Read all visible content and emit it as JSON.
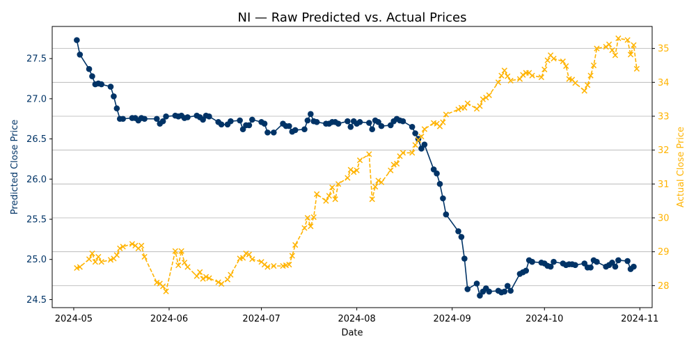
{
  "chart_data": {
    "type": "line",
    "title": "NI — Raw Predicted vs. Actual Prices",
    "xlabel": "Date",
    "ylabel_left": "Predicted Close Price",
    "ylabel_right": "Actual Close Price",
    "xlim": [
      "2024-04-24",
      "2024-11-05"
    ],
    "ylim_left": [
      24.4,
      27.9
    ],
    "ylim_right": [
      27.35,
      35.65
    ],
    "x_ticks": [
      "2024-05-01",
      "2024-06-01",
      "2024-07-01",
      "2024-08-01",
      "2024-09-01",
      "2024-10-01",
      "2024-11-01"
    ],
    "x_tick_labels": [
      "2024-05",
      "2024-06",
      "2024-07",
      "2024-08",
      "2024-09",
      "2024-10",
      "2024-11"
    ],
    "y_ticks_left": [
      24.5,
      25.0,
      25.5,
      26.0,
      26.5,
      27.0,
      27.5
    ],
    "y_tick_labels_left": [
      "24.5",
      "25.0",
      "25.5",
      "26.0",
      "26.5",
      "27.0",
      "27.5"
    ],
    "y_ticks_right": [
      28,
      29,
      30,
      31,
      32,
      33,
      34,
      35
    ],
    "y_tick_labels_right": [
      "28",
      "29",
      "30",
      "31",
      "32",
      "33",
      "34",
      "35"
    ],
    "grid": "horizontal (right axis)",
    "colors": {
      "predicted": "#003366",
      "actual": "#ffb300",
      "grid": "#b0b0b0",
      "text": "#000000"
    },
    "series": [
      {
        "axis": "left",
        "style": "solid line, circle markers",
        "points": [
          [
            "2024-05-02",
            27.73
          ],
          [
            "2024-05-03",
            27.55
          ],
          [
            "2024-05-06",
            27.37
          ],
          [
            "2024-05-07",
            27.28
          ],
          [
            "2024-05-08",
            27.18
          ],
          [
            "2024-05-09",
            27.19
          ],
          [
            "2024-05-10",
            27.18
          ],
          [
            "2024-05-13",
            27.15
          ],
          [
            "2024-05-14",
            27.03
          ],
          [
            "2024-05-15",
            26.88
          ],
          [
            "2024-05-16",
            26.75
          ],
          [
            "2024-05-17",
            26.75
          ],
          [
            "2024-05-20",
            26.76
          ],
          [
            "2024-05-21",
            26.76
          ],
          [
            "2024-05-22",
            26.73
          ],
          [
            "2024-05-23",
            26.76
          ],
          [
            "2024-05-24",
            26.75
          ],
          [
            "2024-05-28",
            26.75
          ],
          [
            "2024-05-29",
            26.69
          ],
          [
            "2024-05-30",
            26.72
          ],
          [
            "2024-05-31",
            26.78
          ],
          [
            "2024-06-03",
            26.79
          ],
          [
            "2024-06-04",
            26.78
          ],
          [
            "2024-06-05",
            26.79
          ],
          [
            "2024-06-06",
            26.76
          ],
          [
            "2024-06-07",
            26.77
          ],
          [
            "2024-06-10",
            26.79
          ],
          [
            "2024-06-11",
            26.77
          ],
          [
            "2024-06-12",
            26.74
          ],
          [
            "2024-06-13",
            26.79
          ],
          [
            "2024-06-14",
            26.78
          ],
          [
            "2024-06-17",
            26.71
          ],
          [
            "2024-06-18",
            26.68
          ],
          [
            "2024-06-20",
            26.68
          ],
          [
            "2024-06-21",
            26.72
          ],
          [
            "2024-06-24",
            26.73
          ],
          [
            "2024-06-25",
            26.62
          ],
          [
            "2024-06-26",
            26.67
          ],
          [
            "2024-06-27",
            26.67
          ],
          [
            "2024-06-28",
            26.74
          ],
          [
            "2024-07-01",
            26.71
          ],
          [
            "2024-07-02",
            26.69
          ],
          [
            "2024-07-03",
            26.58
          ],
          [
            "2024-07-05",
            26.58
          ],
          [
            "2024-07-08",
            26.69
          ],
          [
            "2024-07-09",
            26.66
          ],
          [
            "2024-07-10",
            26.66
          ],
          [
            "2024-07-11",
            26.59
          ],
          [
            "2024-07-12",
            26.61
          ],
          [
            "2024-07-15",
            26.62
          ],
          [
            "2024-07-16",
            26.73
          ],
          [
            "2024-07-17",
            26.81
          ],
          [
            "2024-07-18",
            26.72
          ],
          [
            "2024-07-19",
            26.71
          ],
          [
            "2024-07-22",
            26.69
          ],
          [
            "2024-07-23",
            26.69
          ],
          [
            "2024-07-24",
            26.71
          ],
          [
            "2024-07-25",
            26.71
          ],
          [
            "2024-07-26",
            26.69
          ],
          [
            "2024-07-29",
            26.72
          ],
          [
            "2024-07-30",
            26.65
          ],
          [
            "2024-07-31",
            26.72
          ],
          [
            "2024-08-01",
            26.69
          ],
          [
            "2024-08-02",
            26.71
          ],
          [
            "2024-08-05",
            26.7
          ],
          [
            "2024-08-06",
            26.62
          ],
          [
            "2024-08-07",
            26.73
          ],
          [
            "2024-08-08",
            26.71
          ],
          [
            "2024-08-09",
            26.66
          ],
          [
            "2024-08-12",
            26.67
          ],
          [
            "2024-08-13",
            26.72
          ],
          [
            "2024-08-14",
            26.75
          ],
          [
            "2024-08-15",
            26.73
          ],
          [
            "2024-08-16",
            26.72
          ],
          [
            "2024-08-19",
            26.65
          ],
          [
            "2024-08-20",
            26.57
          ],
          [
            "2024-08-21",
            26.5
          ],
          [
            "2024-08-22",
            26.38
          ],
          [
            "2024-08-23",
            26.43
          ],
          [
            "2024-08-26",
            26.12
          ],
          [
            "2024-08-27",
            26.07
          ],
          [
            "2024-08-28",
            25.94
          ],
          [
            "2024-08-29",
            25.76
          ],
          [
            "2024-08-30",
            25.56
          ],
          [
            "2024-09-03",
            25.35
          ],
          [
            "2024-09-04",
            25.28
          ],
          [
            "2024-09-05",
            25.01
          ],
          [
            "2024-09-06",
            24.63
          ],
          [
            "2024-09-09",
            24.7
          ],
          [
            "2024-09-10",
            24.55
          ],
          [
            "2024-09-11",
            24.6
          ],
          [
            "2024-09-12",
            24.64
          ],
          [
            "2024-09-13",
            24.6
          ],
          [
            "2024-09-16",
            24.61
          ],
          [
            "2024-09-17",
            24.59
          ],
          [
            "2024-09-18",
            24.6
          ],
          [
            "2024-09-19",
            24.67
          ],
          [
            "2024-09-20",
            24.61
          ],
          [
            "2024-09-23",
            24.82
          ],
          [
            "2024-09-24",
            24.84
          ],
          [
            "2024-09-25",
            24.86
          ],
          [
            "2024-09-26",
            24.99
          ],
          [
            "2024-09-27",
            24.97
          ],
          [
            "2024-09-30",
            24.96
          ],
          [
            "2024-10-01",
            24.95
          ],
          [
            "2024-10-02",
            24.92
          ],
          [
            "2024-10-03",
            24.91
          ],
          [
            "2024-10-04",
            24.97
          ],
          [
            "2024-10-07",
            24.95
          ],
          [
            "2024-10-08",
            24.93
          ],
          [
            "2024-10-09",
            24.94
          ],
          [
            "2024-10-10",
            24.94
          ],
          [
            "2024-10-11",
            24.93
          ],
          [
            "2024-10-14",
            24.95
          ],
          [
            "2024-10-15",
            24.9
          ],
          [
            "2024-10-16",
            24.9
          ],
          [
            "2024-10-17",
            24.99
          ],
          [
            "2024-10-18",
            24.97
          ],
          [
            "2024-10-21",
            24.91
          ],
          [
            "2024-10-22",
            24.93
          ],
          [
            "2024-10-23",
            24.96
          ],
          [
            "2024-10-24",
            24.91
          ],
          [
            "2024-10-25",
            24.99
          ],
          [
            "2024-10-28",
            24.98
          ],
          [
            "2024-10-29",
            24.88
          ],
          [
            "2024-10-30",
            24.91
          ]
        ]
      },
      {
        "axis": "right",
        "style": "dashed line, x markers",
        "points": [
          [
            "2024-05-02",
            28.52
          ],
          [
            "2024-05-03",
            28.55
          ],
          [
            "2024-05-06",
            28.78
          ],
          [
            "2024-05-07",
            28.95
          ],
          [
            "2024-05-08",
            28.7
          ],
          [
            "2024-05-09",
            28.85
          ],
          [
            "2024-05-10",
            28.7
          ],
          [
            "2024-05-13",
            28.76
          ],
          [
            "2024-05-14",
            28.8
          ],
          [
            "2024-05-15",
            28.9
          ],
          [
            "2024-05-16",
            29.1
          ],
          [
            "2024-05-17",
            29.15
          ],
          [
            "2024-05-20",
            29.23
          ],
          [
            "2024-05-21",
            29.18
          ],
          [
            "2024-05-22",
            29.1
          ],
          [
            "2024-05-23",
            29.18
          ],
          [
            "2024-05-24",
            28.85
          ],
          [
            "2024-05-28",
            28.09
          ],
          [
            "2024-05-29",
            28.06
          ],
          [
            "2024-05-30",
            27.98
          ],
          [
            "2024-05-31",
            27.83
          ],
          [
            "2024-06-03",
            29.02
          ],
          [
            "2024-06-04",
            28.6
          ],
          [
            "2024-06-05",
            29.02
          ],
          [
            "2024-06-06",
            28.68
          ],
          [
            "2024-06-07",
            28.55
          ],
          [
            "2024-06-10",
            28.28
          ],
          [
            "2024-06-11",
            28.4
          ],
          [
            "2024-06-12",
            28.2
          ],
          [
            "2024-06-13",
            28.26
          ],
          [
            "2024-06-14",
            28.22
          ],
          [
            "2024-06-17",
            28.1
          ],
          [
            "2024-06-18",
            28.05
          ],
          [
            "2024-06-20",
            28.18
          ],
          [
            "2024-06-21",
            28.32
          ],
          [
            "2024-06-24",
            28.8
          ],
          [
            "2024-06-25",
            28.82
          ],
          [
            "2024-06-26",
            28.95
          ],
          [
            "2024-06-27",
            28.92
          ],
          [
            "2024-06-28",
            28.78
          ],
          [
            "2024-07-01",
            28.7
          ],
          [
            "2024-07-02",
            28.62
          ],
          [
            "2024-07-03",
            28.55
          ],
          [
            "2024-07-05",
            28.58
          ],
          [
            "2024-07-08",
            28.58
          ],
          [
            "2024-07-09",
            28.6
          ],
          [
            "2024-07-10",
            28.62
          ],
          [
            "2024-07-11",
            28.88
          ],
          [
            "2024-07-12",
            29.2
          ],
          [
            "2024-07-15",
            29.7
          ],
          [
            "2024-07-16",
            30.0
          ],
          [
            "2024-07-17",
            29.75
          ],
          [
            "2024-07-18",
            30.02
          ],
          [
            "2024-07-19",
            30.7
          ],
          [
            "2024-07-22",
            30.5
          ],
          [
            "2024-07-23",
            30.65
          ],
          [
            "2024-07-24",
            30.9
          ],
          [
            "2024-07-25",
            30.55
          ],
          [
            "2024-07-26",
            31.0
          ],
          [
            "2024-07-29",
            31.18
          ],
          [
            "2024-07-30",
            31.42
          ],
          [
            "2024-07-31",
            31.35
          ],
          [
            "2024-08-01",
            31.4
          ],
          [
            "2024-08-02",
            31.7
          ],
          [
            "2024-08-05",
            31.88
          ],
          [
            "2024-08-06",
            30.55
          ],
          [
            "2024-08-07",
            30.92
          ],
          [
            "2024-08-08",
            31.1
          ],
          [
            "2024-08-09",
            31.05
          ],
          [
            "2024-08-12",
            31.4
          ],
          [
            "2024-08-13",
            31.57
          ],
          [
            "2024-08-14",
            31.6
          ],
          [
            "2024-08-15",
            31.82
          ],
          [
            "2024-08-16",
            31.92
          ],
          [
            "2024-08-19",
            31.92
          ],
          [
            "2024-08-20",
            32.15
          ],
          [
            "2024-08-21",
            32.3
          ],
          [
            "2024-08-22",
            32.4
          ],
          [
            "2024-08-23",
            32.62
          ],
          [
            "2024-08-26",
            32.8
          ],
          [
            "2024-08-27",
            32.78
          ],
          [
            "2024-08-28",
            32.7
          ],
          [
            "2024-08-29",
            32.82
          ],
          [
            "2024-08-30",
            33.05
          ],
          [
            "2024-09-03",
            33.2
          ],
          [
            "2024-09-04",
            33.25
          ],
          [
            "2024-09-05",
            33.25
          ],
          [
            "2024-09-06",
            33.38
          ],
          [
            "2024-09-09",
            33.22
          ],
          [
            "2024-09-10",
            33.3
          ],
          [
            "2024-09-11",
            33.5
          ],
          [
            "2024-09-12",
            33.55
          ],
          [
            "2024-09-13",
            33.62
          ],
          [
            "2024-09-16",
            34.0
          ],
          [
            "2024-09-17",
            34.2
          ],
          [
            "2024-09-18",
            34.35
          ],
          [
            "2024-09-19",
            34.18
          ],
          [
            "2024-09-20",
            34.05
          ],
          [
            "2024-09-23",
            34.1
          ],
          [
            "2024-09-24",
            34.22
          ],
          [
            "2024-09-25",
            34.28
          ],
          [
            "2024-09-26",
            34.28
          ],
          [
            "2024-09-27",
            34.2
          ],
          [
            "2024-09-30",
            34.15
          ],
          [
            "2024-10-01",
            34.38
          ],
          [
            "2024-10-02",
            34.65
          ],
          [
            "2024-10-03",
            34.8
          ],
          [
            "2024-10-04",
            34.7
          ],
          [
            "2024-10-07",
            34.62
          ],
          [
            "2024-10-08",
            34.48
          ],
          [
            "2024-10-09",
            34.1
          ],
          [
            "2024-10-10",
            34.08
          ],
          [
            "2024-10-11",
            33.98
          ],
          [
            "2024-10-14",
            33.75
          ],
          [
            "2024-10-15",
            33.92
          ],
          [
            "2024-10-16",
            34.2
          ],
          [
            "2024-10-17",
            34.5
          ],
          [
            "2024-10-18",
            35.0
          ],
          [
            "2024-10-21",
            35.05
          ],
          [
            "2024-10-22",
            35.12
          ],
          [
            "2024-10-23",
            34.95
          ],
          [
            "2024-10-24",
            34.8
          ],
          [
            "2024-10-25",
            35.3
          ],
          [
            "2024-10-28",
            35.25
          ],
          [
            "2024-10-29",
            34.82
          ],
          [
            "2024-10-30",
            35.1
          ],
          [
            "2024-10-31",
            34.4
          ]
        ]
      }
    ]
  }
}
